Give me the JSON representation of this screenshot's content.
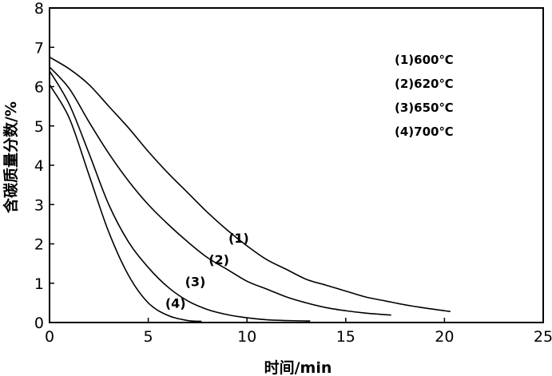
{
  "chart_data": {
    "type": "line",
    "xlabel": "时间/min",
    "ylabel": "含碳质量分数/%",
    "xlim": [
      0,
      25
    ],
    "ylim": [
      0,
      8
    ],
    "x_ticks": [
      "0",
      "5",
      "10",
      "15",
      "20",
      "25"
    ],
    "y_ticks": [
      "0",
      "1",
      "2",
      "3",
      "4",
      "5",
      "6",
      "7",
      "8"
    ],
    "grid": false,
    "legend_position": "top-right",
    "legend": [
      "(1)600℃",
      "(2)620℃",
      "(3)650℃",
      "(4)700℃"
    ],
    "series": [
      {
        "name": "(1)",
        "x": [
          0,
          1,
          2,
          3,
          4,
          5,
          6,
          7,
          8,
          9,
          10,
          11,
          12,
          13,
          14,
          15,
          16,
          17,
          18,
          19,
          20,
          20.3
        ],
        "y": [
          6.75,
          6.45,
          6.05,
          5.5,
          4.95,
          4.35,
          3.8,
          3.3,
          2.8,
          2.35,
          1.95,
          1.6,
          1.35,
          1.1,
          0.95,
          0.8,
          0.65,
          0.55,
          0.45,
          0.37,
          0.3,
          0.28
        ]
      },
      {
        "name": "(2)",
        "x": [
          0,
          1,
          2,
          3,
          4,
          5,
          6,
          7,
          8,
          9,
          10,
          11,
          12,
          13,
          14,
          15,
          16,
          17,
          17.3
        ],
        "y": [
          6.5,
          5.95,
          5.1,
          4.3,
          3.6,
          3.0,
          2.5,
          2.05,
          1.65,
          1.35,
          1.05,
          0.85,
          0.65,
          0.5,
          0.38,
          0.3,
          0.24,
          0.2,
          0.19
        ]
      },
      {
        "name": "(3)",
        "x": [
          0,
          1,
          2,
          3,
          4,
          5,
          6,
          7,
          8,
          9,
          10,
          11,
          12,
          13,
          13.2
        ],
        "y": [
          6.4,
          5.55,
          4.3,
          3.0,
          2.05,
          1.4,
          0.9,
          0.55,
          0.33,
          0.2,
          0.12,
          0.07,
          0.05,
          0.04,
          0.04
        ]
      },
      {
        "name": "(4)",
        "x": [
          0,
          1,
          2,
          3,
          4,
          5,
          6,
          7,
          7.7
        ],
        "y": [
          6.05,
          5.2,
          3.75,
          2.3,
          1.2,
          0.5,
          0.18,
          0.05,
          0.03
        ]
      }
    ]
  }
}
